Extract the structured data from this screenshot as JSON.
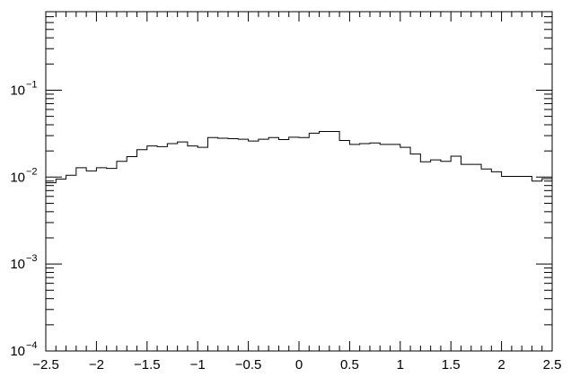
{
  "chart_data": {
    "type": "histogram",
    "title": "",
    "xlabel": "",
    "ylabel": "",
    "xlim": [
      -2.5,
      2.5
    ],
    "ylim": [
      0.0001,
      0.8
    ],
    "y_scale": "log",
    "grid": false,
    "legend": "none",
    "line_color": "#000000",
    "x_tick_labels": [
      "−2.5",
      "−2",
      "−1.5",
      "−1",
      "−0.5",
      "0",
      "0.5",
      "1",
      "1.5",
      "2",
      "2.5"
    ],
    "y_tick_labels": [
      {
        "base": "10",
        "exp": "−4"
      },
      {
        "base": "10",
        "exp": "−3"
      },
      {
        "base": "10",
        "exp": "−2"
      },
      {
        "base": "10",
        "exp": "−1"
      }
    ],
    "bin_edges": [
      -2.5,
      -2.4,
      -2.3,
      -2.2,
      -2.1,
      -2.0,
      -1.9,
      -1.8,
      -1.7,
      -1.6,
      -1.5,
      -1.4,
      -1.3,
      -1.2,
      -1.1,
      -1.0,
      -0.9,
      -0.8,
      -0.7,
      -0.6,
      -0.5,
      -0.4,
      -0.3,
      -0.2,
      -0.1,
      0.0,
      0.1,
      0.2,
      0.3,
      0.4,
      0.5,
      0.6,
      0.7,
      0.8,
      0.9,
      1.0,
      1.1,
      1.2,
      1.3,
      1.4,
      1.5,
      1.6,
      1.7,
      1.8,
      1.9,
      2.0,
      2.1,
      2.2,
      2.3,
      2.4,
      2.5
    ],
    "values": [
      0.0086,
      0.0095,
      0.0105,
      0.0128,
      0.0118,
      0.0128,
      0.0126,
      0.0152,
      0.0172,
      0.0207,
      0.0228,
      0.0224,
      0.0243,
      0.0254,
      0.0228,
      0.022,
      0.0285,
      0.028,
      0.0277,
      0.0273,
      0.026,
      0.0273,
      0.0285,
      0.027,
      0.0288,
      0.0285,
      0.032,
      0.0335,
      0.0335,
      0.0264,
      0.0238,
      0.0243,
      0.0247,
      0.0238,
      0.0238,
      0.022,
      0.0184,
      0.015,
      0.0158,
      0.0152,
      0.0174,
      0.014,
      0.014,
      0.0124,
      0.0115,
      0.0102,
      0.0102,
      0.0102,
      0.009,
      0.0096
    ]
  }
}
